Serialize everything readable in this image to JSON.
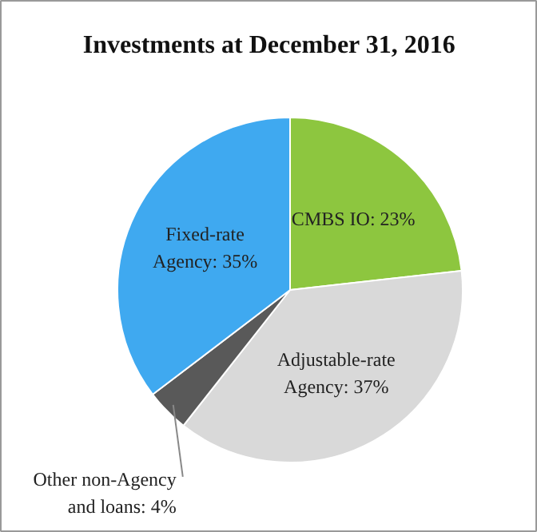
{
  "chart_data": {
    "type": "pie",
    "title": "Investments at December 31, 2016",
    "categories": [
      "CMBS IO",
      "Adjustable-rate Agency",
      "Other non-Agency and loans",
      "Fixed-rate Agency"
    ],
    "value_labels": [
      "23%",
      "37%",
      "4%",
      "35%"
    ],
    "values": [
      23,
      37,
      4,
      35
    ],
    "colors": [
      "#8dc63f",
      "#d9d9d9",
      "#595959",
      "#3fa9f0"
    ]
  }
}
